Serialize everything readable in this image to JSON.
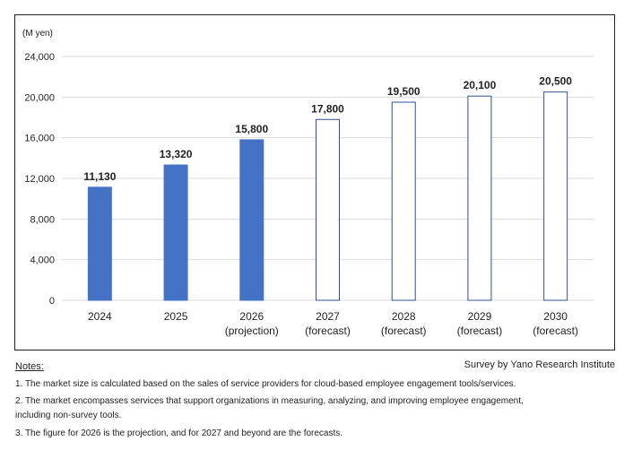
{
  "chart_data": {
    "type": "bar",
    "unit_label": "(M yen)",
    "categories": [
      "2024",
      "2025",
      "2026",
      "2027",
      "2028",
      "2029",
      "2030"
    ],
    "category_sublabels": [
      "",
      "",
      "(projection)",
      "(forecast)",
      "(forecast)",
      "(forecast)",
      "(forecast)"
    ],
    "values": [
      11130,
      13320,
      15800,
      17800,
      19500,
      20100,
      20500
    ],
    "value_labels": [
      "11,130",
      "13,320",
      "15,800",
      "17,800",
      "19,500",
      "20,100",
      "20,500"
    ],
    "bar_style": [
      "filled",
      "filled",
      "filled",
      "outline",
      "outline",
      "outline",
      "outline"
    ],
    "ylim": [
      0,
      24000
    ],
    "yticks": [
      0,
      4000,
      8000,
      12000,
      16000,
      20000,
      24000
    ],
    "ytick_labels": [
      "0",
      "4,000",
      "8,000",
      "12,000",
      "16,000",
      "20,000",
      "24,000"
    ],
    "grid": true,
    "colors": {
      "filled": "#4472c4",
      "outline_stroke": "#2f4f8f",
      "grid": "#d9d9d9"
    }
  },
  "source": "Survey by Yano Research Institute",
  "notes": {
    "header": "Notes:",
    "items": [
      "1. The market size is calculated based on the sales of service providers for cloud-based employee engagement tools/services.",
      "2. The market encompasses services that support organizations in measuring, analyzing, and improving employee engagement,",
      "including non-survey tools.",
      "3. The figure for 2026 is the projection, and for 2027 and beyond are the forecasts."
    ]
  }
}
